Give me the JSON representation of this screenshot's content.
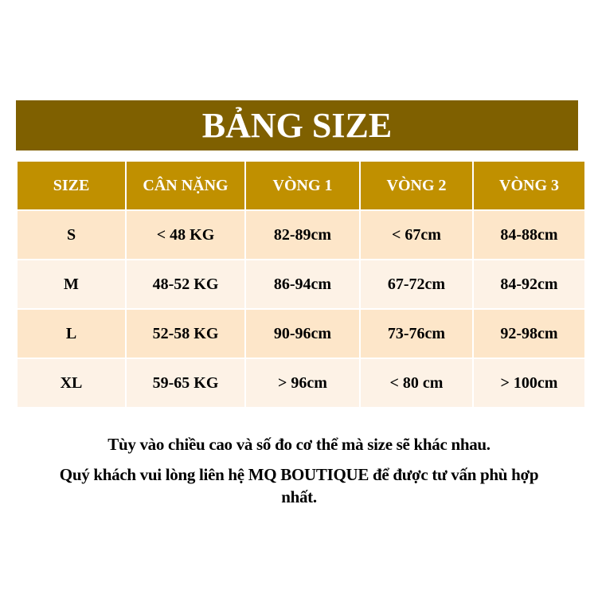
{
  "title": "BẢNG SIZE",
  "colors": {
    "title_bg": "#7f6000",
    "header_bg": "#c09000",
    "row_odd": "#fde6c9",
    "row_even": "#fdf2e6"
  },
  "table": {
    "headers": [
      "SIZE",
      "CÂN NẶNG",
      "VÒNG 1",
      "VÒNG 2",
      "VÒNG 3"
    ],
    "rows": [
      [
        "S",
        "< 48 KG",
        "82-89cm",
        "< 67cm",
        "84-88cm"
      ],
      [
        "M",
        "48-52 KG",
        "86-94cm",
        "67-72cm",
        "84-92cm"
      ],
      [
        "L",
        "52-58 KG",
        "90-96cm",
        "73-76cm",
        "92-98cm"
      ],
      [
        "XL",
        "59-65 KG",
        "> 96cm",
        "< 80 cm",
        "> 100cm"
      ]
    ]
  },
  "notes": [
    "Tùy vào chiều cao và số đo cơ thể mà size sẽ khác nhau.",
    "Quý khách vui lòng liên hệ MQ BOUTIQUE để được tư vấn phù hợp nhất."
  ]
}
